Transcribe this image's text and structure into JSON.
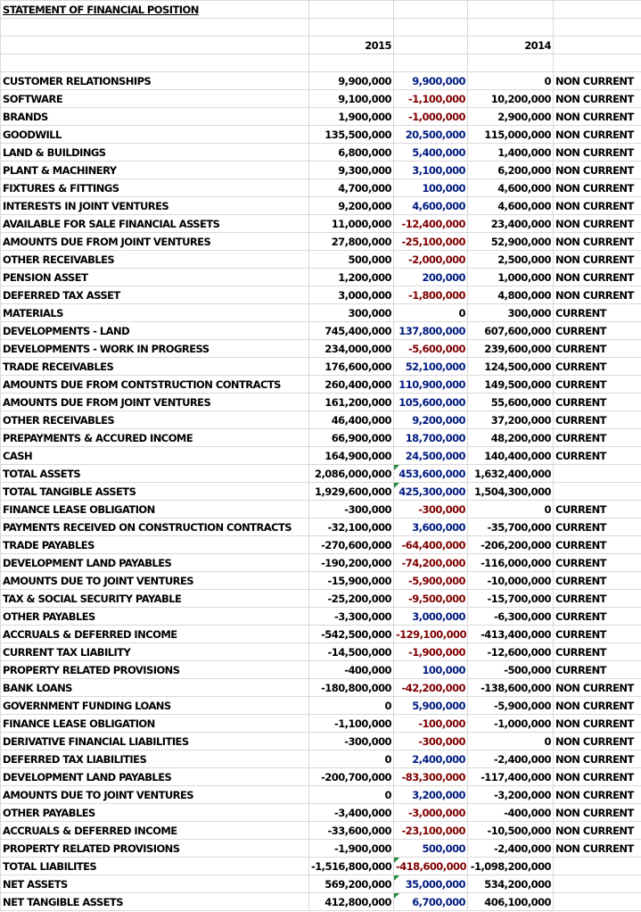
{
  "title": "STATEMENT OF FINANCIAL POSITION",
  "header": {
    "year1": "2015",
    "change": "",
    "year2": "2014"
  },
  "rows": [
    {
      "label": "CUSTOMER RELATIONSHIPS",
      "v2015": "9,900,000",
      "change": "9,900,000",
      "v2014": "0",
      "cls": "NON CURRENT"
    },
    {
      "label": "SOFTWARE",
      "v2015": "9,100,000",
      "change": "-1,100,000",
      "v2014": "10,200,000",
      "cls": "NON CURRENT"
    },
    {
      "label": "BRANDS",
      "v2015": "1,900,000",
      "change": "-1,000,000",
      "v2014": "2,900,000",
      "cls": "NON CURRENT"
    },
    {
      "label": "GOODWILL",
      "v2015": "135,500,000",
      "change": "20,500,000",
      "v2014": "115,000,000",
      "cls": "NON CURRENT"
    },
    {
      "label": "LAND & BUILDINGS",
      "v2015": "6,800,000",
      "change": "5,400,000",
      "v2014": "1,400,000",
      "cls": "NON CURRENT"
    },
    {
      "label": "PLANT & MACHINERY",
      "v2015": "9,300,000",
      "change": "3,100,000",
      "v2014": "6,200,000",
      "cls": "NON CURRENT"
    },
    {
      "label": "FIXTURES & FITTINGS",
      "v2015": "4,700,000",
      "change": "100,000",
      "v2014": "4,600,000",
      "cls": "NON CURRENT"
    },
    {
      "label": "INTERESTS IN JOINT VENTURES",
      "v2015": "9,200,000",
      "change": "4,600,000",
      "v2014": "4,600,000",
      "cls": "NON CURRENT"
    },
    {
      "label": "AVAILABLE FOR SALE FINANCIAL ASSETS",
      "v2015": "11,000,000",
      "change": "-12,400,000",
      "v2014": "23,400,000",
      "cls": "NON CURRENT"
    },
    {
      "label": "AMOUNTS DUE FROM JOINT VENTURES",
      "v2015": "27,800,000",
      "change": "-25,100,000",
      "v2014": "52,900,000",
      "cls": "NON CURRENT"
    },
    {
      "label": "OTHER RECEIVABLES",
      "v2015": "500,000",
      "change": "-2,000,000",
      "v2014": "2,500,000",
      "cls": "NON CURRENT"
    },
    {
      "label": "PENSION ASSET",
      "v2015": "1,200,000",
      "change": "200,000",
      "v2014": "1,000,000",
      "cls": "NON CURRENT"
    },
    {
      "label": "DEFERRED TAX ASSET",
      "v2015": "3,000,000",
      "change": "-1,800,000",
      "v2014": "4,800,000",
      "cls": "NON CURRENT"
    },
    {
      "label": "MATERIALS",
      "v2015": "300,000",
      "change": "0",
      "v2014": "300,000",
      "cls": "CURRENT"
    },
    {
      "label": "DEVELOPMENTS - LAND",
      "v2015": "745,400,000",
      "change": "137,800,000",
      "v2014": "607,600,000",
      "cls": "CURRENT"
    },
    {
      "label": "DEVELOPMENTS - WORK IN PROGRESS",
      "v2015": "234,000,000",
      "change": "-5,600,000",
      "v2014": "239,600,000",
      "cls": "CURRENT"
    },
    {
      "label": "TRADE RECEIVABLES",
      "v2015": "176,600,000",
      "change": "52,100,000",
      "v2014": "124,500,000",
      "cls": "CURRENT"
    },
    {
      "label": "AMOUNTS DUE FROM CONTSTRUCTION CONTRACTS",
      "v2015": "260,400,000",
      "change": "110,900,000",
      "v2014": "149,500,000",
      "cls": "CURRENT"
    },
    {
      "label": "AMOUNTS DUE FROM JOINT VENTURES",
      "v2015": "161,200,000",
      "change": "105,600,000",
      "v2014": "55,600,000",
      "cls": "CURRENT"
    },
    {
      "label": "OTHER RECEIVABLES",
      "v2015": "46,400,000",
      "change": "9,200,000",
      "v2014": "37,200,000",
      "cls": "CURRENT"
    },
    {
      "label": "PREPAYMENTS & ACCURED INCOME",
      "v2015": "66,900,000",
      "change": "18,700,000",
      "v2014": "48,200,000",
      "cls": "CURRENT"
    },
    {
      "label": "CASH",
      "v2015": "164,900,000",
      "change": "24,500,000",
      "v2014": "140,400,000",
      "cls": "CURRENT"
    },
    {
      "label": "TOTAL ASSETS",
      "v2015": "2,086,000,000",
      "change": "453,600,000",
      "v2014": "1,632,400,000",
      "cls": "",
      "flag": true
    },
    {
      "label": "TOTAL TANGIBLE ASSETS",
      "v2015": "1,929,600,000",
      "change": "425,300,000",
      "v2014": "1,504,300,000",
      "cls": "",
      "flag": true
    },
    {
      "label": "FINANCE LEASE OBLIGATION",
      "v2015": "-300,000",
      "change": "-300,000",
      "v2014": "0",
      "cls": "CURRENT"
    },
    {
      "label": "PAYMENTS RECEIVED ON CONSTRUCTION CONTRACTS",
      "v2015": "-32,100,000",
      "change": "3,600,000",
      "v2014": "-35,700,000",
      "cls": "CURRENT"
    },
    {
      "label": "TRADE PAYABLES",
      "v2015": "-270,600,000",
      "change": "-64,400,000",
      "v2014": "-206,200,000",
      "cls": "CURRENT"
    },
    {
      "label": "DEVELOPMENT LAND PAYABLES",
      "v2015": "-190,200,000",
      "change": "-74,200,000",
      "v2014": "-116,000,000",
      "cls": "CURRENT"
    },
    {
      "label": "AMOUNTS DUE TO JOINT VENTURES",
      "v2015": "-15,900,000",
      "change": "-5,900,000",
      "v2014": "-10,000,000",
      "cls": "CURRENT"
    },
    {
      "label": "TAX & SOCIAL SECURITY PAYABLE",
      "v2015": "-25,200,000",
      "change": "-9,500,000",
      "v2014": "-15,700,000",
      "cls": "CURRENT"
    },
    {
      "label": "OTHER PAYABLES",
      "v2015": "-3,300,000",
      "change": "3,000,000",
      "v2014": "-6,300,000",
      "cls": "CURRENT"
    },
    {
      "label": "ACCRUALS & DEFERRED INCOME",
      "v2015": "-542,500,000",
      "change": "-129,100,000",
      "v2014": "-413,400,000",
      "cls": "CURRENT"
    },
    {
      "label": "CURRENT TAX LIABILITY",
      "v2015": "-14,500,000",
      "change": "-1,900,000",
      "v2014": "-12,600,000",
      "cls": "CURRENT"
    },
    {
      "label": "PROPERTY RELATED PROVISIONS",
      "v2015": "-400,000",
      "change": "100,000",
      "v2014": "-500,000",
      "cls": "CURRENT"
    },
    {
      "label": "BANK LOANS",
      "v2015": "-180,800,000",
      "change": "-42,200,000",
      "v2014": "-138,600,000",
      "cls": "NON CURRENT"
    },
    {
      "label": "GOVERNMENT FUNDING LOANS",
      "v2015": "0",
      "change": "5,900,000",
      "v2014": "-5,900,000",
      "cls": "NON CURRENT"
    },
    {
      "label": "FINANCE LEASE OBLIGATION",
      "v2015": "-1,100,000",
      "change": "-100,000",
      "v2014": "-1,000,000",
      "cls": "NON CURRENT"
    },
    {
      "label": "DERIVATIVE FINANCIAL LIABILITIES",
      "v2015": "-300,000",
      "change": "-300,000",
      "v2014": "0",
      "cls": "NON CURRENT"
    },
    {
      "label": "DEFERRED TAX LIABILITIES",
      "v2015": "0",
      "change": "2,400,000",
      "v2014": "-2,400,000",
      "cls": "NON CURRENT"
    },
    {
      "label": "DEVELOPMENT LAND PAYABLES",
      "v2015": "-200,700,000",
      "change": "-83,300,000",
      "v2014": "-117,400,000",
      "cls": "NON CURRENT"
    },
    {
      "label": "AMOUNTS DUE TO JOINT VENTURES",
      "v2015": "0",
      "change": "3,200,000",
      "v2014": "-3,200,000",
      "cls": "NON CURRENT"
    },
    {
      "label": "OTHER PAYABLES",
      "v2015": "-3,400,000",
      "change": "-3,000,000",
      "v2014": "-400,000",
      "cls": "NON CURRENT"
    },
    {
      "label": "ACCRUALS & DEFERRED INCOME",
      "v2015": "-33,600,000",
      "change": "-23,100,000",
      "v2014": "-10,500,000",
      "cls": "NON CURRENT"
    },
    {
      "label": "PROPERTY RELATED PROVISIONS",
      "v2015": "-1,900,000",
      "change": "500,000",
      "v2014": "-2,400,000",
      "cls": "NON CURRENT"
    },
    {
      "label": "TOTAL LIABILITES",
      "v2015": "-1,516,800,000",
      "change": "-418,600,000",
      "v2014": "-1,098,200,000",
      "cls": "",
      "flag": true
    },
    {
      "label": "NET ASSETS",
      "v2015": "569,200,000",
      "change": "35,000,000",
      "v2014": "534,200,000",
      "cls": "",
      "flag": true
    },
    {
      "label": "NET TANGIBLE ASSETS",
      "v2015": "412,800,000",
      "change": "6,700,000",
      "v2014": "406,100,000",
      "cls": "",
      "flag": true
    }
  ],
  "colors": {
    "negative": "#7f0000",
    "positive": "#001a80",
    "text": "#000000",
    "gridline": "#d9d9d9",
    "flag": "#1e8b3a"
  }
}
